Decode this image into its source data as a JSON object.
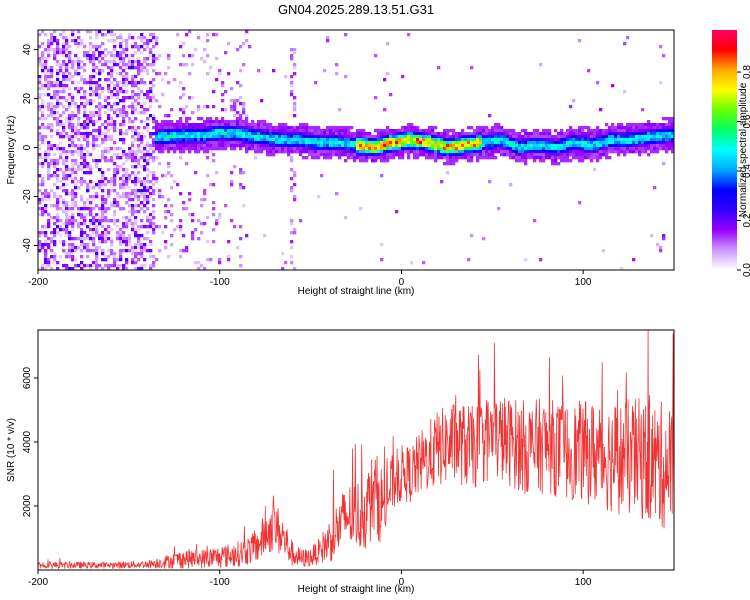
{
  "title": "GN04.2025.289.13.51.G31",
  "chart_data": [
    {
      "type": "heatmap",
      "xlabel": "Height of straight line (km)",
      "ylabel": "Frequency (Hz)",
      "xlim": [
        -200,
        150
      ],
      "ylim": [
        -50,
        48
      ],
      "xticks": [
        -200,
        -100,
        0,
        100
      ],
      "xtick_labels": [
        "-200",
        "-100",
        "0",
        "100"
      ],
      "yticks": [
        -40,
        -20,
        0,
        20,
        40
      ],
      "ytick_labels": [
        "-40",
        "-20",
        "0",
        "20",
        "40"
      ],
      "colorbar": {
        "label": "Normalized spectral amplitude",
        "range": [
          0,
          0.97
        ],
        "ticks": [
          0.0,
          0.2,
          0.4,
          0.6,
          0.8
        ],
        "tick_labels": [
          "0.0",
          "0.2",
          "0.4",
          "0.6",
          "0.8"
        ],
        "colors": [
          "#ffffff",
          "#cc99ff",
          "#9900ff",
          "#3300ff",
          "#0000ff",
          "#00aaff",
          "#00ffff",
          "#00ff66",
          "#66ff00",
          "#ffff00",
          "#ffaa00",
          "#ff0000",
          "#ff0066"
        ]
      },
      "ridge": {
        "x": [
          -135,
          -120,
          -110,
          -100,
          -95,
          -85,
          -75,
          -65,
          -55,
          -45,
          -35,
          -25,
          -15,
          -5,
          5,
          15,
          25,
          35,
          45,
          55,
          65,
          75,
          85,
          95,
          105,
          115,
          125,
          135,
          145,
          150
        ],
        "y": [
          4,
          5,
          5,
          6,
          6,
          5,
          4,
          3,
          3,
          2,
          2,
          1,
          0,
          2,
          3,
          2,
          0,
          1,
          2,
          3,
          0,
          1,
          0,
          2,
          1,
          3,
          3,
          4,
          5,
          5
        ],
        "peak_region": [
          -25,
          45
        ]
      },
      "noise_region": [
        -200,
        -135
      ]
    },
    {
      "type": "line",
      "xlabel": "Height of straight line (km)",
      "ylabel": "SNR (10 * v/v)",
      "xlim": [
        -200,
        150
      ],
      "ylim": [
        0,
        7500
      ],
      "xticks": [
        -200,
        -100,
        0,
        100
      ],
      "xtick_labels": [
        "-200",
        "-100",
        "0",
        "100"
      ],
      "yticks": [
        2000,
        4000,
        6000
      ],
      "ytick_labels": [
        "2000",
        "4000",
        "6000"
      ],
      "color": "#f03434",
      "envelope": {
        "x": [
          -200,
          -180,
          -160,
          -140,
          -130,
          -120,
          -110,
          -100,
          -90,
          -80,
          -75,
          -70,
          -65,
          -60,
          -55,
          -50,
          -45,
          -40,
          -35,
          -30,
          -25,
          -20,
          -15,
          -10,
          -5,
          0,
          5,
          10,
          20,
          30,
          40,
          50,
          60,
          70,
          80,
          90,
          100,
          110,
          120,
          130,
          140,
          150
        ],
        "mean": [
          150,
          150,
          150,
          180,
          250,
          350,
          350,
          400,
          500,
          700,
          1100,
          1400,
          1000,
          500,
          350,
          400,
          600,
          900,
          1300,
          1700,
          1700,
          1800,
          2400,
          2000,
          2700,
          3000,
          3000,
          3300,
          3800,
          4000,
          3800,
          4200,
          4000,
          3800,
          3900,
          3700,
          3700,
          3600,
          3500,
          3500,
          3300,
          3200
        ],
        "spread": [
          120,
          100,
          100,
          120,
          200,
          300,
          300,
          350,
          400,
          500,
          700,
          800,
          700,
          400,
          300,
          300,
          400,
          700,
          900,
          1000,
          1100,
          1200,
          1400,
          1200,
          900,
          900,
          900,
          1000,
          1200,
          1300,
          1300,
          1400,
          1400,
          1500,
          1500,
          1500,
          1600,
          1700,
          1800,
          1900,
          2000,
          2000
        ]
      }
    }
  ]
}
